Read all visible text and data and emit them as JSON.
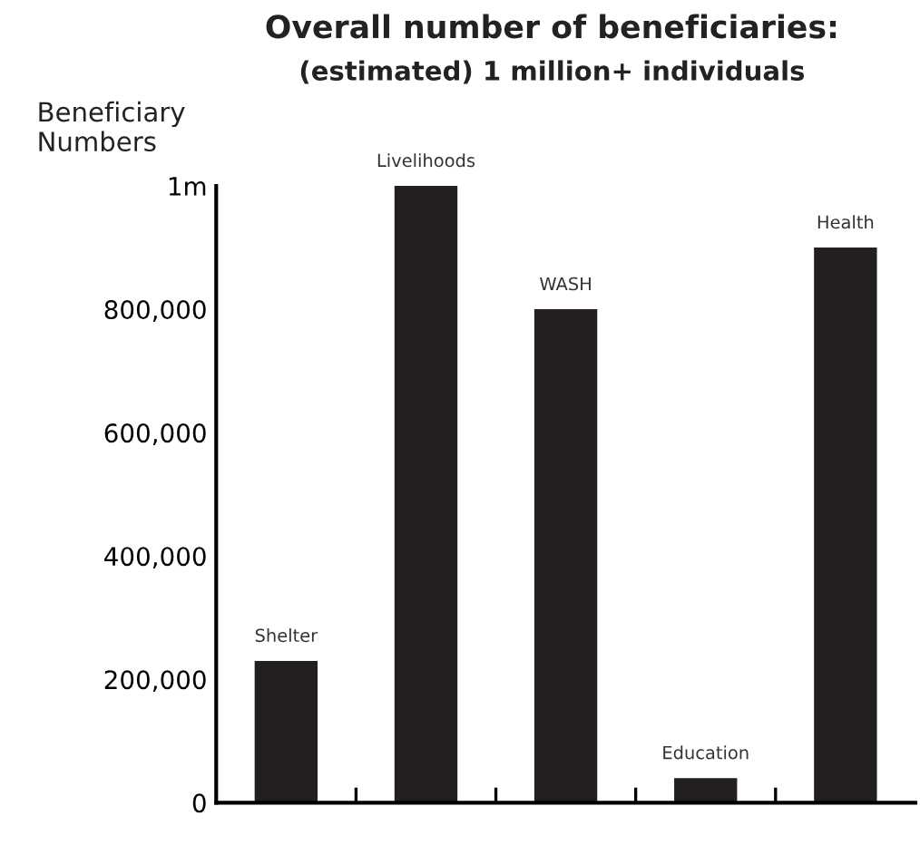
{
  "chart_data": {
    "type": "bar",
    "title": "Overall number of beneficiaries:",
    "subtitle": "(estimated) 1 million+ individuals",
    "ylabel": "Beneficiary\nNumbers",
    "categories": [
      "Shelter",
      "Livelihoods",
      "WASH",
      "Education",
      "Health"
    ],
    "values": [
      230000,
      1000000,
      800000,
      40000,
      900000
    ],
    "color": "#231f20",
    "ylim": [
      0,
      1000000
    ],
    "yticks": [
      0,
      {
        "value": 200000,
        "label": "200,000"
      },
      {
        "value": 400000,
        "label": "400,000"
      },
      {
        "value": 600000,
        "label": "600,000"
      },
      {
        "value": 800000,
        "label": "800,000"
      },
      {
        "value": 1000000,
        "label": "1m"
      }
    ],
    "tick_labels": "y",
    "grid": false,
    "legend": false
  }
}
